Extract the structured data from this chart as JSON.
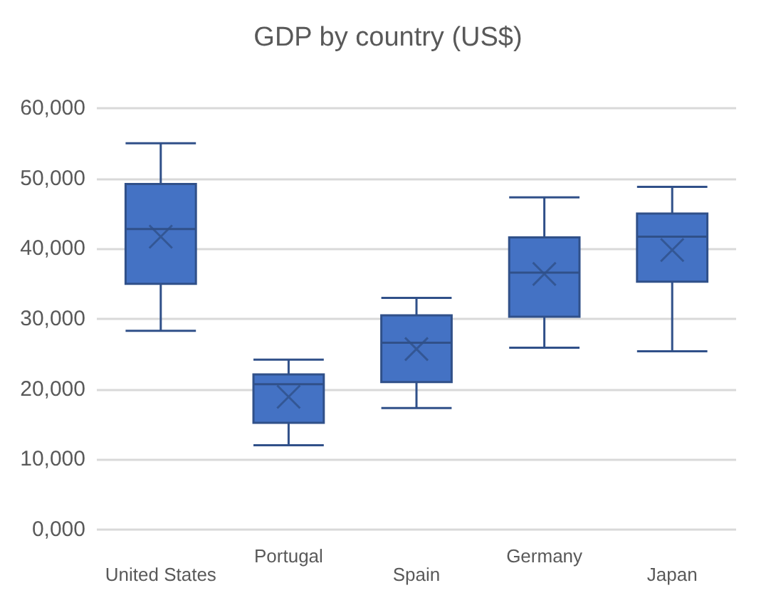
{
  "chart_data": {
    "type": "box",
    "title": "GDP by country (US$)",
    "categories": [
      "United States",
      "Portugal",
      "Spain",
      "Germany",
      "Japan"
    ],
    "series": [
      {
        "color": "#4472c4",
        "boxes": [
          {
            "low": 28300,
            "q1": 35000,
            "median": 42800,
            "q3": 49200,
            "high": 55000,
            "mean": 41700
          },
          {
            "low": 12000,
            "q1": 15200,
            "median": 20700,
            "q3": 22100,
            "high": 24200,
            "mean": 18900
          },
          {
            "low": 17300,
            "q1": 21000,
            "median": 26600,
            "q3": 30500,
            "high": 33000,
            "mean": 25700
          },
          {
            "low": 25900,
            "q1": 30300,
            "median": 36600,
            "q3": 41600,
            "high": 47300,
            "mean": 36400
          },
          {
            "low": 25400,
            "q1": 35300,
            "median": 41700,
            "q3": 45000,
            "high": 48800,
            "mean": 39800
          }
        ]
      }
    ],
    "ylim": [
      0,
      60000
    ],
    "yticks": [
      {
        "value": 0,
        "label": "0,000"
      },
      {
        "value": 10000,
        "label": "10,000"
      },
      {
        "value": 20000,
        "label": "20,000"
      },
      {
        "value": 30000,
        "label": "30,000"
      },
      {
        "value": 40000,
        "label": "40,000"
      },
      {
        "value": 50000,
        "label": "50,000"
      },
      {
        "value": 60000,
        "label": "60,000"
      }
    ],
    "grid": "y"
  }
}
